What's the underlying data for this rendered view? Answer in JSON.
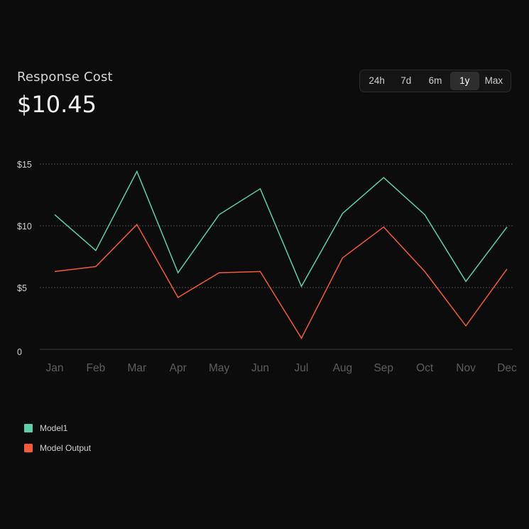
{
  "header": {
    "title": "Response Cost",
    "amount": "$10.45"
  },
  "range_selector": {
    "options": [
      "24h",
      "7d",
      "6m",
      "1y",
      "Max"
    ],
    "selected": "1y"
  },
  "chart_data": {
    "type": "line",
    "categories": [
      "Jan",
      "Feb",
      "Mar",
      "Apr",
      "May",
      "Jun",
      "Jul",
      "Aug",
      "Sep",
      "Oct",
      "Nov",
      "Dec"
    ],
    "y_ticks": [
      0,
      5,
      10,
      15
    ],
    "y_tick_labels": [
      "0",
      "$5",
      "$10",
      "$15"
    ],
    "ylim": [
      0,
      15
    ],
    "grid": "horizontal dashed",
    "legend_position": "bottom-left",
    "series": [
      {
        "name": "Model1",
        "color": "#5ecfa6",
        "values": [
          10.9,
          8.0,
          14.4,
          6.2,
          10.9,
          13.0,
          5.1,
          11.0,
          13.9,
          10.9,
          5.5,
          9.9
        ]
      },
      {
        "name": "Model Output",
        "color": "#f45a3b",
        "values": [
          6.3,
          6.7,
          10.1,
          4.2,
          6.2,
          6.3,
          0.9,
          7.4,
          9.9,
          6.3,
          1.9,
          6.5
        ]
      }
    ]
  }
}
